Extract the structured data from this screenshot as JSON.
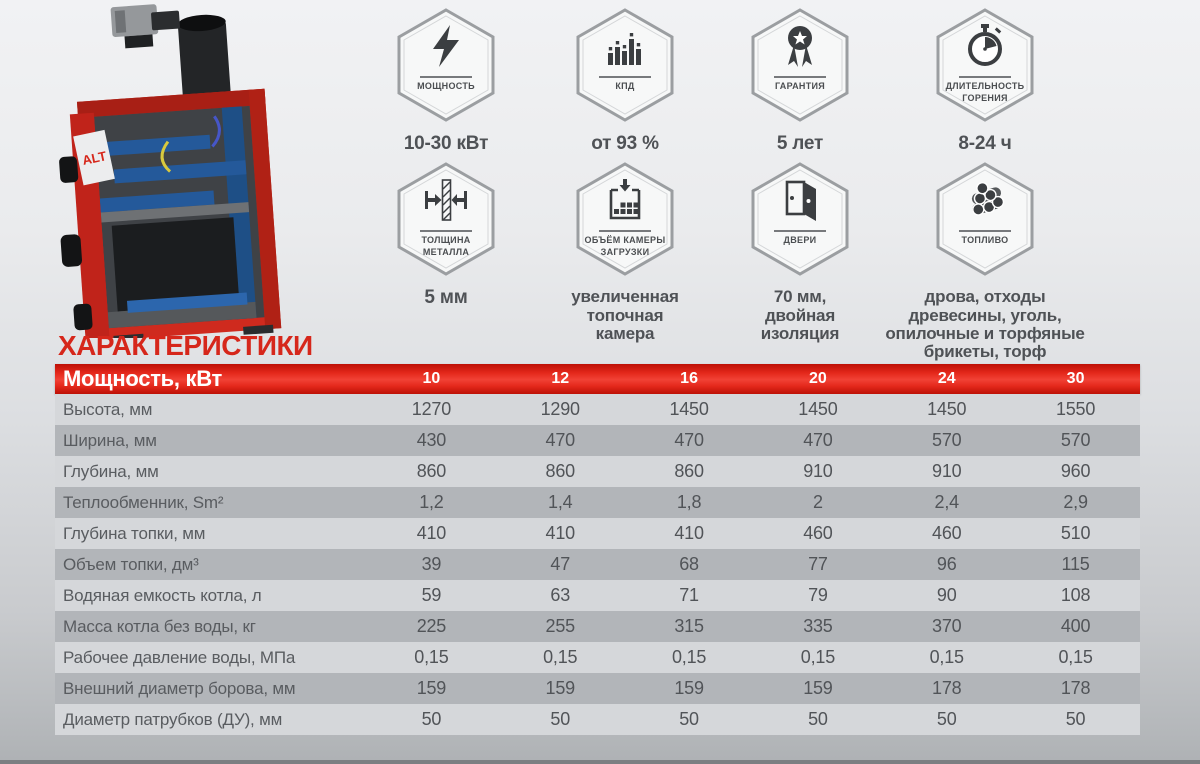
{
  "page_title": "ХАРАКТЕРИСТИКИ",
  "boiler": {
    "brand_label": "ALT"
  },
  "colors": {
    "accent_red": "#e4281b",
    "title_red": "#d6271b",
    "row_light": "#d5d7da",
    "row_dark": "#b2b5b9",
    "badge_border": "#9b9ea1",
    "icon_dark": "#3b3e41"
  },
  "badges": [
    {
      "icon": "lightning-icon",
      "label": "МОЩНОСТЬ",
      "value": "10-30 кВт"
    },
    {
      "icon": "bar-chart-icon",
      "label": "КПД",
      "value": "от 93 %"
    },
    {
      "icon": "medal-icon",
      "label": "ГАРАНТИЯ",
      "value": "5 лет"
    },
    {
      "icon": "stopwatch-icon",
      "label": "ДЛИТЕЛЬНОСТЬ\nГОРЕНИЯ",
      "value": "8-24 ч"
    },
    {
      "icon": "metal-thickness-icon",
      "label": "ТОЛЩИНА\nМЕТАЛЛА",
      "value": "5 мм"
    },
    {
      "icon": "loading-chamber-icon",
      "label": "ОБЪЁМ КАМЕРЫ\nЗАГРУЗКИ",
      "value": "увеличенная\nтопочная\nкамера"
    },
    {
      "icon": "door-icon",
      "label": "ДВЕРИ",
      "value": "70 мм,\nдвойная\nизоляция"
    },
    {
      "icon": "logs-icon",
      "label": "ТОПЛИВО",
      "value": "дрова, отходы\nдревесины, уголь,\nопилочные и торфяные\nбрикеты, торф"
    }
  ],
  "table": {
    "header_label": "Мощность, кВт",
    "power_columns": [
      "10",
      "12",
      "16",
      "20",
      "24",
      "30"
    ],
    "rows": [
      {
        "label": "Высота, мм",
        "values": [
          "1270",
          "1290",
          "1450",
          "1450",
          "1450",
          "1550"
        ]
      },
      {
        "label": "Ширина, мм",
        "values": [
          "430",
          "470",
          "470",
          "470",
          "570",
          "570"
        ]
      },
      {
        "label": "Глубина, мм",
        "values": [
          "860",
          "860",
          "860",
          "910",
          "910",
          "960"
        ]
      },
      {
        "label": "Теплообменник,  Sm²",
        "values": [
          "1,2",
          "1,4",
          "1,8",
          "2",
          "2,4",
          "2,9"
        ]
      },
      {
        "label": "Глубина топки, мм",
        "values": [
          "410",
          "410",
          "410",
          "460",
          "460",
          "510"
        ]
      },
      {
        "label": "Объем топки, дм³",
        "values": [
          "39",
          "47",
          "68",
          "77",
          "96",
          "115"
        ]
      },
      {
        "label": "Водяная емкость котла, л",
        "values": [
          "59",
          "63",
          "71",
          "79",
          "90",
          "108"
        ]
      },
      {
        "label": "Масса котла без воды, кг",
        "values": [
          "225",
          "255",
          "315",
          "335",
          "370",
          "400"
        ]
      },
      {
        "label": "Рабочее давление воды, МПа",
        "values": [
          "0,15",
          "0,15",
          "0,15",
          "0,15",
          "0,15",
          "0,15"
        ]
      },
      {
        "label": "Внешний диаметр борова, мм",
        "values": [
          "159",
          "159",
          "159",
          "159",
          "178",
          "178"
        ]
      },
      {
        "label": "Диаметр патрубков (ДУ), мм",
        "values": [
          "50",
          "50",
          "50",
          "50",
          "50",
          "50"
        ]
      }
    ]
  }
}
